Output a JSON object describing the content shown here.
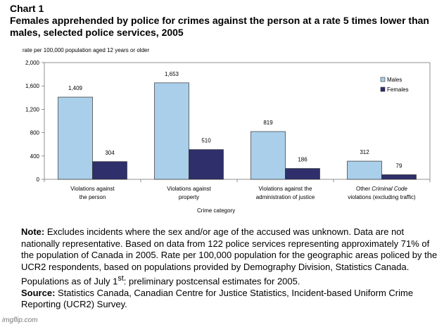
{
  "chart_data": {
    "type": "bar",
    "label": "Chart 1",
    "title": "Females apprehended by police for crimes against the person at a rate 5 times lower than males, selected police services, 2005",
    "ylabel": "rate per 100,000 population aged 12 years or older",
    "xlabel": "Crime category",
    "categories": [
      [
        "Violations against",
        "the person"
      ],
      [
        "Violations against",
        "property"
      ],
      [
        "Violations against the",
        "administration of justice"
      ],
      [
        "Other Criminal Code",
        "violations (excluding traffic)"
      ]
    ],
    "series": [
      {
        "name": "Males",
        "values": [
          1409,
          1653,
          819,
          312
        ],
        "labels": [
          "1,409",
          "1,653",
          "819",
          "312"
        ],
        "color": "#a9cfea"
      },
      {
        "name": "Females",
        "values": [
          304,
          510,
          186,
          79
        ],
        "labels": [
          "304",
          "510",
          "186",
          "79"
        ],
        "color": "#2e2f6b"
      }
    ],
    "ylim": [
      0,
      2000
    ],
    "yticks": [
      0,
      400,
      800,
      1200,
      1600,
      2000
    ],
    "ytick_labels": [
      "0",
      "400",
      "800",
      "1,200",
      "1,600",
      "2,000"
    ],
    "grid": false,
    "legend": "top-right"
  },
  "note": {
    "label": "Note:",
    "text_before_sup": " Excludes incidents where the sex and/or age of the accused was unknown. Data are not nationally representative. Based on data from 122 police services representing approximately 71% of the population of Canada in 2005. Rate per 100,000 population for the geographic areas policed by the UCR2 respondents, based on populations provided by Demography Division, Statistics Canada. Populations as of July 1",
    "sup": "st",
    "text_after_sup": ": preliminary postcensal estimates for 2005."
  },
  "source": {
    "label": "Source:",
    "text": " Statistics Canada, Canadian Centre for Justice Statistics, Incident-based Uniform Crime Reporting (UCR2) Survey."
  },
  "watermark": "imgflip.com"
}
